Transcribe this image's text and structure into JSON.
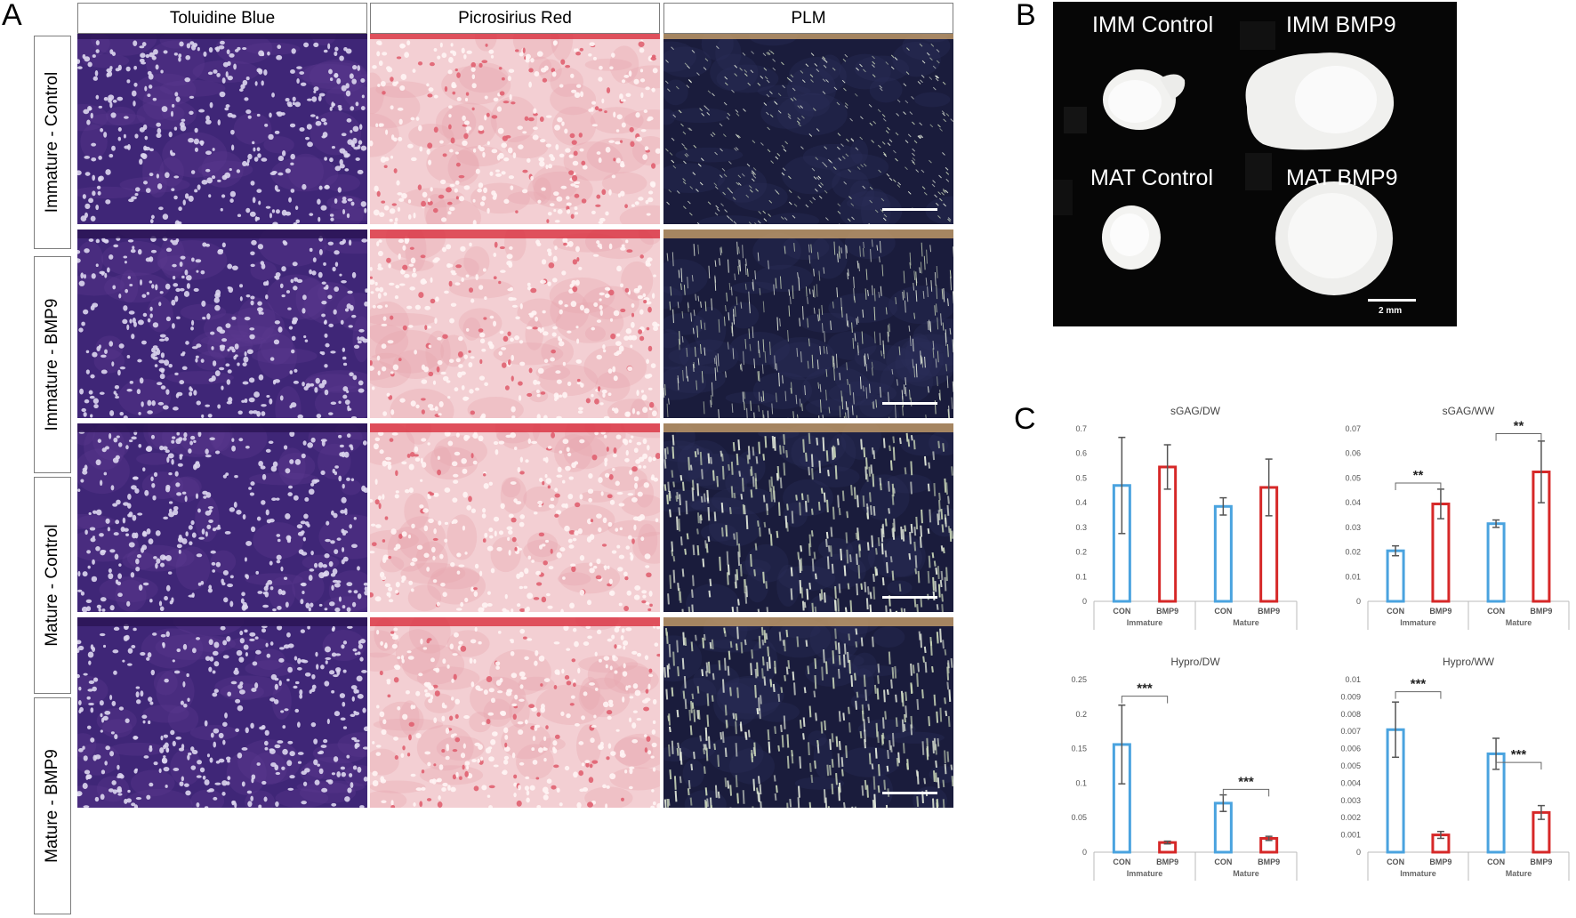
{
  "panel_letters": {
    "a": "A",
    "b": "B",
    "c": "C"
  },
  "panelA": {
    "columns": [
      "Toluidine Blue",
      "Picrosirius Red",
      "PLM"
    ],
    "rows": [
      "Immature - Control",
      "Immature - BMP9",
      "Mature - Control",
      "Mature - BMP9"
    ]
  },
  "panelB": {
    "labels": {
      "imm_control": "IMM Control",
      "imm_bmp9": "IMM BMP9",
      "mat_control": "MAT Control",
      "mat_bmp9": "MAT BMP9"
    },
    "scale_label": "2 mm"
  },
  "colors": {
    "con": "#4aa3df",
    "bmp9": "#d62828",
    "error": "#555555",
    "axis": "#bbbbbb"
  },
  "chart_data": [
    {
      "type": "bar",
      "title": "sGAG/DW",
      "categories": [
        "CON",
        "BMP9",
        "CON",
        "BMP9"
      ],
      "groups": [
        "Immature",
        "Mature"
      ],
      "values": [
        0.47,
        0.545,
        0.385,
        0.462
      ],
      "errors": [
        0.195,
        0.09,
        0.035,
        0.115
      ],
      "ylim": [
        0,
        0.7
      ],
      "yticks": [
        "0",
        "0.1",
        "0.2",
        "0.3",
        "0.4",
        "0.5",
        "0.6",
        "0.7"
      ],
      "significance": []
    },
    {
      "type": "bar",
      "title": "sGAG/WW",
      "categories": [
        "CON",
        "BMP9",
        "CON",
        "BMP9"
      ],
      "groups": [
        "Immature",
        "Mature"
      ],
      "values": [
        0.0205,
        0.0395,
        0.0315,
        0.0525
      ],
      "errors": [
        0.002,
        0.006,
        0.0015,
        0.0125
      ],
      "ylim": [
        0,
        0.07
      ],
      "yticks": [
        "0",
        "0.01",
        "0.02",
        "0.03",
        "0.04",
        "0.05",
        "0.06",
        "0.07"
      ],
      "significance": [
        {
          "from": 0,
          "to": 1,
          "level": 0.048,
          "label": "**"
        },
        {
          "from": 2,
          "to": 3,
          "level": 0.068,
          "label": "**"
        }
      ]
    },
    {
      "type": "bar",
      "title": "Hypro/DW",
      "categories": [
        "CON",
        "BMP9",
        "CON",
        "BMP9"
      ],
      "groups": [
        "Immature",
        "Mature"
      ],
      "values": [
        0.156,
        0.014,
        0.071,
        0.02
      ],
      "errors": [
        0.057,
        0.002,
        0.012,
        0.003
      ],
      "ylim": [
        0,
        0.25
      ],
      "yticks": [
        "0",
        "0.05",
        "0.1",
        "0.15",
        "0.2",
        "0.25"
      ],
      "significance": [
        {
          "from": 0,
          "to": 1,
          "level": 0.226,
          "label": "***"
        },
        {
          "from": 2,
          "to": 3,
          "level": 0.091,
          "label": "***"
        }
      ]
    },
    {
      "type": "bar",
      "title": "Hypro/WW",
      "categories": [
        "CON",
        "BMP9",
        "CON",
        "BMP9"
      ],
      "groups": [
        "Immature",
        "Mature"
      ],
      "values": [
        0.0071,
        0.001,
        0.0057,
        0.0023
      ],
      "errors": [
        0.0016,
        0.0002,
        0.0009,
        0.0004
      ],
      "ylim": [
        0,
        0.01
      ],
      "yticks": [
        "0",
        "0.001",
        "0.002",
        "0.003",
        "0.004",
        "0.005",
        "0.006",
        "0.007",
        "0.008",
        "0.009",
        "0.01"
      ],
      "significance": [
        {
          "from": 0,
          "to": 1,
          "level": 0.0093,
          "label": "***"
        },
        {
          "from": 2,
          "to": 3,
          "level": 0.0052,
          "label": "***"
        }
      ]
    }
  ]
}
